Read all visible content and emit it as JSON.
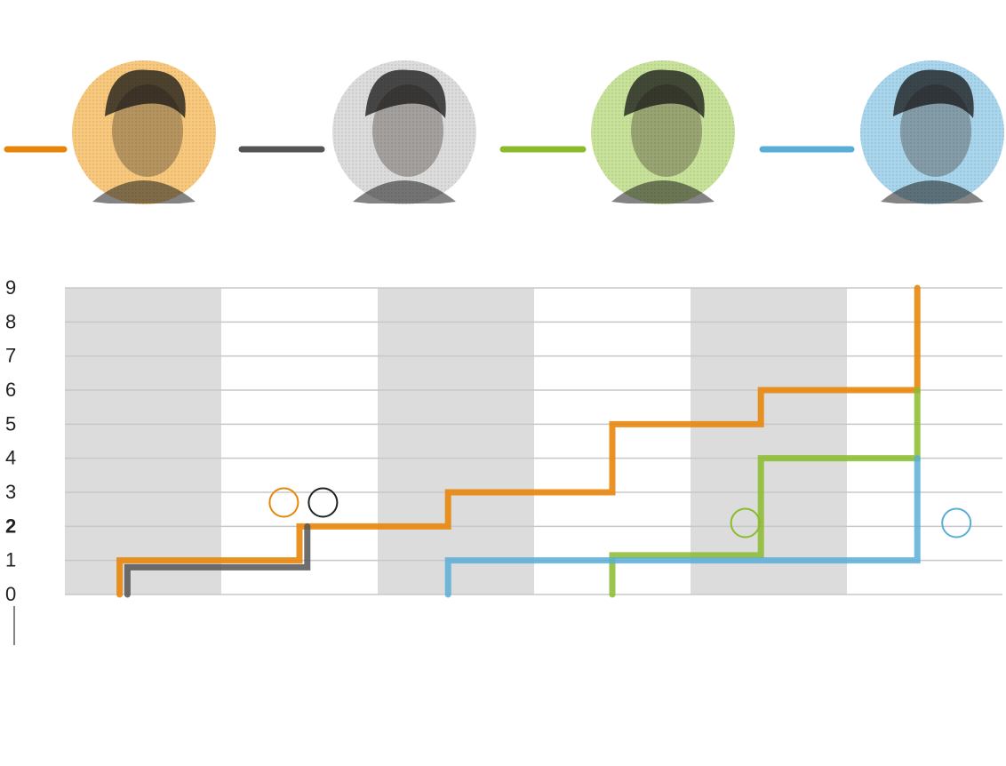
{
  "players": [
    {
      "color": "#e8860c",
      "avatar_bg": "#f8c97d",
      "icon": "player-avatar"
    },
    {
      "color": "#555555",
      "avatar_bg": "#dcdcdc",
      "icon": "player-avatar"
    },
    {
      "color": "#8bbb2d",
      "avatar_bg": "#c9e29a",
      "icon": "player-avatar"
    },
    {
      "color": "#5aaed6",
      "avatar_bg": "#a9d6ec",
      "icon": "player-avatar"
    }
  ],
  "chart_data": {
    "type": "line",
    "step": true,
    "ylim": [
      0,
      9
    ],
    "y_ticks": [
      "0",
      "1",
      "2",
      "3",
      "4",
      "5",
      "6",
      "7",
      "8",
      "9"
    ],
    "xlim": [
      0,
      6
    ],
    "grid": true,
    "series": [
      {
        "color": "#e8860c",
        "x": [
          0.35,
          0.35,
          1.5,
          1.5,
          2.45,
          2.45,
          3.5,
          3.5,
          4.45,
          4.45,
          5.45,
          5.45
        ],
        "y": [
          0,
          1,
          1,
          2,
          2,
          3,
          3,
          5,
          5,
          6,
          6,
          9
        ]
      },
      {
        "color": "#555555",
        "x": [
          0.4,
          0.4,
          1.55,
          1.55
        ],
        "y": [
          0,
          0.8,
          0.8,
          2
        ]
      },
      {
        "color": "#8bbb2d",
        "x": [
          3.5,
          3.5,
          4.45,
          4.45,
          5.45,
          5.45
        ],
        "y": [
          0,
          1.15,
          1.15,
          4,
          4,
          6
        ]
      },
      {
        "color": "#5aaed6",
        "x": [
          2.45,
          2.45,
          5.45,
          5.45
        ],
        "y": [
          0,
          1,
          1,
          4
        ]
      }
    ],
    "markers": [
      {
        "series": 0,
        "x": 1.4,
        "y": 2.7
      },
      {
        "series": 1,
        "x": 1.65,
        "y": 2.7
      },
      {
        "series": 2,
        "x": 4.35,
        "y": 2.1
      },
      {
        "series": 3,
        "x": 5.7,
        "y": 2.1
      }
    ],
    "shaded_bands": [
      [
        0,
        1
      ],
      [
        2,
        3
      ],
      [
        4,
        5
      ]
    ]
  }
}
